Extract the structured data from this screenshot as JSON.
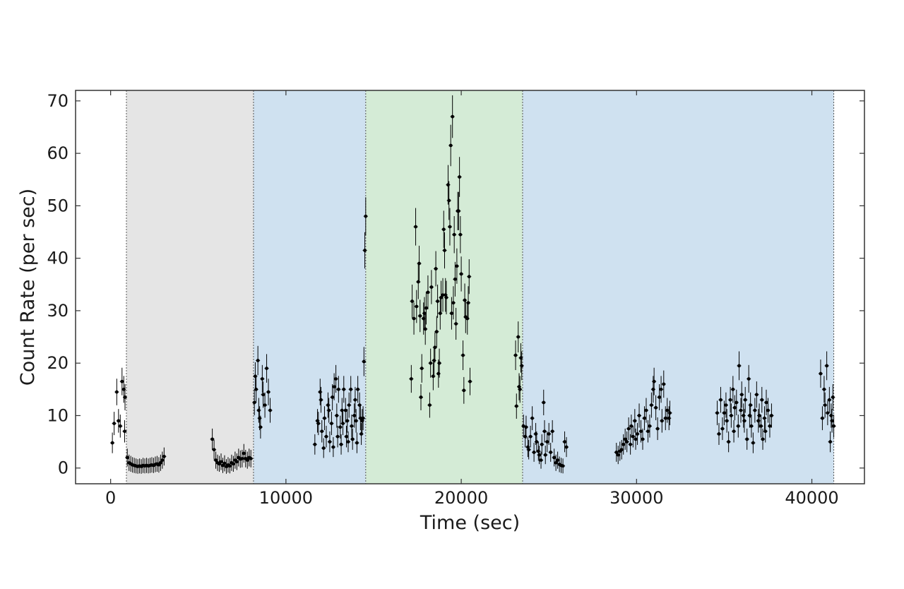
{
  "chart_data": {
    "type": "scatter",
    "title": "",
    "xlabel": "Time (sec)",
    "ylabel": "Count Rate (per sec)",
    "xlim": [
      -2000,
      43000
    ],
    "ylim": [
      -3,
      72
    ],
    "xticks": [
      0,
      10000,
      20000,
      30000,
      40000
    ],
    "yticks": [
      0,
      10,
      20,
      30,
      40,
      50,
      60,
      70
    ],
    "grid": false,
    "legend": "none",
    "regions": [
      {
        "x0": 900,
        "x1": 8150,
        "color": "#e5e5e5"
      },
      {
        "x0": 8150,
        "x1": 14550,
        "color": "#cfe1f0"
      },
      {
        "x0": 14550,
        "x1": 23500,
        "color": "#d4ebd6"
      },
      {
        "x0": 23500,
        "x1": 41250,
        "color": "#cfe1f0"
      }
    ],
    "point_color": "#000000",
    "series": [
      {
        "points": [
          [
            100,
            4.8
          ],
          [
            200,
            8.5
          ],
          [
            350,
            14.5
          ],
          [
            450,
            9
          ],
          [
            550,
            8
          ],
          [
            650,
            16.5
          ],
          [
            750,
            15
          ],
          [
            800,
            7
          ],
          [
            820,
            13.5
          ],
          [
            950,
            2
          ],
          [
            1050,
            1
          ],
          [
            1150,
            0.8
          ],
          [
            1250,
            0.6
          ],
          [
            1350,
            0.5
          ],
          [
            1450,
            0.4
          ],
          [
            1550,
            0.3
          ],
          [
            1650,
            0.4
          ],
          [
            1750,
            0.3
          ],
          [
            1850,
            0.5
          ],
          [
            1950,
            0.4
          ],
          [
            2050,
            0.5
          ],
          [
            2150,
            0.4
          ],
          [
            2250,
            0.5
          ],
          [
            2350,
            0.6
          ],
          [
            2450,
            0.5
          ],
          [
            2550,
            0.7
          ],
          [
            2650,
            0.8
          ],
          [
            2750,
            0.6
          ],
          [
            2850,
            1
          ],
          [
            2950,
            1.5
          ],
          [
            3050,
            2.2
          ],
          [
            5800,
            5.5
          ],
          [
            5900,
            3.5
          ],
          [
            6000,
            1.5
          ],
          [
            6100,
            1.0
          ],
          [
            6200,
            0.8
          ],
          [
            6300,
            1.2
          ],
          [
            6400,
            0.5
          ],
          [
            6500,
            0.9
          ],
          [
            6600,
            0.3
          ],
          [
            6700,
            0.6
          ],
          [
            6800,
            0.4
          ],
          [
            6900,
            1
          ],
          [
            7000,
            0.8
          ],
          [
            7100,
            1.5
          ],
          [
            7200,
            1.2
          ],
          [
            7300,
            2
          ],
          [
            7400,
            1.7
          ],
          [
            7500,
            1.8
          ],
          [
            7600,
            2.8
          ],
          [
            7700,
            1.8
          ],
          [
            7800,
            1.5
          ],
          [
            7900,
            2
          ],
          [
            8000,
            1.8
          ],
          [
            8200,
            12.5
          ],
          [
            8250,
            17.5
          ],
          [
            8300,
            15
          ],
          [
            8400,
            20.5
          ],
          [
            8450,
            11
          ],
          [
            8500,
            9.5
          ],
          [
            8550,
            7.8
          ],
          [
            8650,
            17
          ],
          [
            8700,
            14
          ],
          [
            8800,
            12
          ],
          [
            8900,
            19
          ],
          [
            9000,
            14.5
          ],
          [
            9100,
            11
          ],
          [
            11650,
            4.5
          ],
          [
            11800,
            9
          ],
          [
            11850,
            8.5
          ],
          [
            11950,
            14.5
          ],
          [
            12000,
            13
          ],
          [
            12050,
            7
          ],
          [
            12150,
            3.8
          ],
          [
            12200,
            9.5
          ],
          [
            12300,
            6
          ],
          [
            12400,
            12
          ],
          [
            12450,
            11
          ],
          [
            12500,
            5
          ],
          [
            12600,
            8.5
          ],
          [
            12650,
            13.5
          ],
          [
            12700,
            4
          ],
          [
            12750,
            15.5
          ],
          [
            12850,
            17
          ],
          [
            12900,
            10
          ],
          [
            12950,
            6
          ],
          [
            13000,
            15
          ],
          [
            13100,
            7.8
          ],
          [
            13150,
            4.5
          ],
          [
            13200,
            11
          ],
          [
            13250,
            8.5
          ],
          [
            13300,
            15
          ],
          [
            13400,
            11
          ],
          [
            13450,
            6
          ],
          [
            13500,
            9
          ],
          [
            13550,
            5
          ],
          [
            13600,
            12
          ],
          [
            13700,
            15
          ],
          [
            13750,
            8
          ],
          [
            13800,
            5.5
          ],
          [
            13900,
            10
          ],
          [
            13950,
            13
          ],
          [
            14000,
            9
          ],
          [
            14050,
            4.8
          ],
          [
            14100,
            15
          ],
          [
            14200,
            12
          ],
          [
            14250,
            9.5
          ],
          [
            14300,
            6.5
          ],
          [
            14350,
            9
          ],
          [
            14400,
            9.5
          ],
          [
            14450,
            20.3
          ],
          [
            14500,
            41.5
          ],
          [
            14550,
            48
          ],
          [
            17150,
            17
          ],
          [
            17200,
            31.8
          ],
          [
            17300,
            28.5
          ],
          [
            17400,
            46
          ],
          [
            17450,
            30.8
          ],
          [
            17550,
            35.5
          ],
          [
            17600,
            39
          ],
          [
            17650,
            29
          ],
          [
            17700,
            13.5
          ],
          [
            17750,
            19
          ],
          [
            17850,
            28.5
          ],
          [
            17900,
            29.5
          ],
          [
            17950,
            26.5
          ],
          [
            18000,
            30.5
          ],
          [
            18100,
            33.5
          ],
          [
            18200,
            12
          ],
          [
            18250,
            20
          ],
          [
            18300,
            34.5
          ],
          [
            18400,
            17.5
          ],
          [
            18450,
            20.5
          ],
          [
            18500,
            23
          ],
          [
            18550,
            38
          ],
          [
            18600,
            26
          ],
          [
            18650,
            31.8
          ],
          [
            18700,
            18
          ],
          [
            18750,
            20
          ],
          [
            18800,
            29.5
          ],
          [
            18850,
            32.5
          ],
          [
            18950,
            33
          ],
          [
            19000,
            45.5
          ],
          [
            19050,
            41.5
          ],
          [
            19100,
            33
          ],
          [
            19150,
            32.5
          ],
          [
            19250,
            54
          ],
          [
            19300,
            51
          ],
          [
            19350,
            46
          ],
          [
            19400,
            61.5
          ],
          [
            19450,
            29.5
          ],
          [
            19500,
            67
          ],
          [
            19550,
            31.5
          ],
          [
            19600,
            44.5
          ],
          [
            19650,
            36
          ],
          [
            19700,
            27.5
          ],
          [
            19750,
            38.5
          ],
          [
            19800,
            49
          ],
          [
            19850,
            49
          ],
          [
            19900,
            55.5
          ],
          [
            19950,
            44.5
          ],
          [
            20000,
            37
          ],
          [
            20100,
            21.5
          ],
          [
            20150,
            14.8
          ],
          [
            20200,
            32
          ],
          [
            20250,
            28.8
          ],
          [
            20350,
            28.5
          ],
          [
            20400,
            31.5
          ],
          [
            20450,
            36.5
          ],
          [
            20500,
            16.5
          ],
          [
            23100,
            21.5
          ],
          [
            23150,
            11.8
          ],
          [
            23250,
            25
          ],
          [
            23300,
            15.5
          ],
          [
            23350,
            15
          ],
          [
            23400,
            21
          ],
          [
            23450,
            19.5
          ],
          [
            23550,
            8
          ],
          [
            23650,
            6
          ],
          [
            23700,
            7.8
          ],
          [
            23800,
            4
          ],
          [
            23850,
            3.5
          ],
          [
            23950,
            6
          ],
          [
            24050,
            9.5
          ],
          [
            24150,
            3
          ],
          [
            24250,
            6.5
          ],
          [
            24300,
            5
          ],
          [
            24400,
            3.2
          ],
          [
            24450,
            2.5
          ],
          [
            24550,
            1.5
          ],
          [
            24600,
            4.5
          ],
          [
            24700,
            12.5
          ],
          [
            24750,
            7
          ],
          [
            24800,
            2.5
          ],
          [
            24900,
            5
          ],
          [
            25000,
            6.5
          ],
          [
            25100,
            3
          ],
          [
            25200,
            7
          ],
          [
            25300,
            2
          ],
          [
            25400,
            1
          ],
          [
            25500,
            1.5
          ],
          [
            25600,
            0.7
          ],
          [
            25700,
            0.5
          ],
          [
            25800,
            0.4
          ],
          [
            25900,
            5
          ],
          [
            26000,
            4
          ],
          [
            28850,
            3
          ],
          [
            28950,
            2.5
          ],
          [
            29050,
            3.2
          ],
          [
            29150,
            3.5
          ],
          [
            29250,
            4.5
          ],
          [
            29350,
            5.5
          ],
          [
            29450,
            5
          ],
          [
            29550,
            7.5
          ],
          [
            29650,
            4.5
          ],
          [
            29700,
            8
          ],
          [
            29800,
            6
          ],
          [
            29900,
            9
          ],
          [
            29950,
            5.5
          ],
          [
            30050,
            6.5
          ],
          [
            30150,
            10
          ],
          [
            30250,
            7
          ],
          [
            30350,
            5.5
          ],
          [
            30450,
            9.5
          ],
          [
            30550,
            11
          ],
          [
            30650,
            7
          ],
          [
            30750,
            8
          ],
          [
            30850,
            12
          ],
          [
            30950,
            15
          ],
          [
            31000,
            16.5
          ],
          [
            31100,
            11.5
          ],
          [
            31200,
            7.5
          ],
          [
            31300,
            13.5
          ],
          [
            31400,
            15
          ],
          [
            31450,
            9
          ],
          [
            31550,
            16
          ],
          [
            31650,
            9.5
          ],
          [
            31750,
            11
          ],
          [
            31850,
            9.5
          ],
          [
            31900,
            10.5
          ],
          [
            34600,
            10.5
          ],
          [
            34700,
            6.5
          ],
          [
            34800,
            13
          ],
          [
            34900,
            7.5
          ],
          [
            35000,
            10.5
          ],
          [
            35100,
            12
          ],
          [
            35150,
            9
          ],
          [
            35250,
            5
          ],
          [
            35350,
            13
          ],
          [
            35400,
            10
          ],
          [
            35500,
            15
          ],
          [
            35550,
            7
          ],
          [
            35600,
            11.5
          ],
          [
            35700,
            12.5
          ],
          [
            35800,
            8
          ],
          [
            35850,
            19.5
          ],
          [
            35950,
            11
          ],
          [
            36000,
            14
          ],
          [
            36100,
            10
          ],
          [
            36150,
            9
          ],
          [
            36200,
            13
          ],
          [
            36300,
            5.5
          ],
          [
            36400,
            17
          ],
          [
            36450,
            10
          ],
          [
            36500,
            12
          ],
          [
            36550,
            8
          ],
          [
            36650,
            4.8
          ],
          [
            36750,
            11
          ],
          [
            36850,
            14
          ],
          [
            36950,
            9
          ],
          [
            37000,
            10
          ],
          [
            37100,
            8
          ],
          [
            37150,
            13
          ],
          [
            37200,
            5.5
          ],
          [
            37300,
            9.5
          ],
          [
            37350,
            7
          ],
          [
            37400,
            12.5
          ],
          [
            37500,
            11
          ],
          [
            37600,
            8
          ],
          [
            37700,
            10
          ],
          [
            40500,
            18
          ],
          [
            40600,
            9.5
          ],
          [
            40700,
            15
          ],
          [
            40750,
            12
          ],
          [
            40850,
            19.5
          ],
          [
            40900,
            10.5
          ],
          [
            41000,
            13
          ],
          [
            41050,
            5
          ],
          [
            41100,
            10
          ],
          [
            41150,
            9
          ],
          [
            41200,
            13.5
          ],
          [
            41250,
            8
          ]
        ]
      }
    ]
  }
}
